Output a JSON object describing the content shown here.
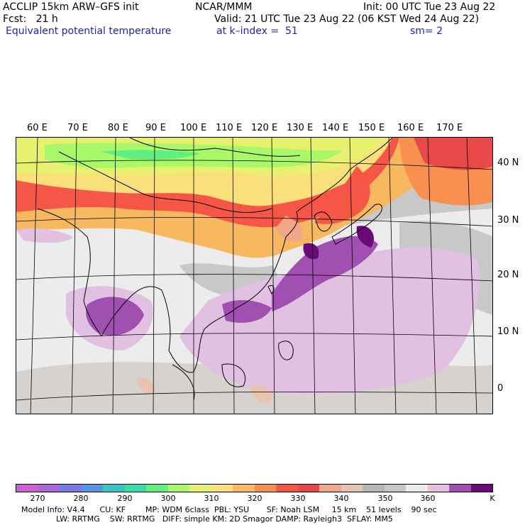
{
  "header": {
    "model": "ACCLIP 15km ARW–GFS init",
    "org": "NCAR/MMM",
    "init": "Init: 00 UTC Tue 23 Aug 22",
    "fcst": "Fcst:   21 h",
    "valid": "Valid: 21 UTC Tue 23 Aug 22 (06 KST Wed 24 Aug 22)",
    "field": "Equivalent potential temperature",
    "level": "at k–index =  51",
    "smooth": "sm= 2"
  },
  "map": {
    "lon_labels": [
      "60 E",
      "70 E",
      "80 E",
      "90 E",
      "100 E",
      "110 E",
      "120 E",
      "130 E",
      "140 E",
      "150 E",
      "160 E",
      "170 E"
    ],
    "lat_labels": [
      "40 N",
      "30 N",
      "20 N",
      "10 N",
      "0"
    ]
  },
  "colorbar": {
    "colors": [
      "#d05ed0",
      "#a968d8",
      "#7f78e4",
      "#5a92e4",
      "#36c8c0",
      "#34e0a8",
      "#5ef080",
      "#a8f868",
      "#e8f070",
      "#fae07a",
      "#f8b860",
      "#f89050",
      "#f65646",
      "#e84848",
      "#f0a888",
      "#e8c4b0",
      "#bcb6b2",
      "#c8c8c8",
      "#ececec",
      "#e2c0e2",
      "#a050b0",
      "#6a0a78"
    ],
    "labels": [
      "270",
      "280",
      "290",
      "300",
      "310",
      "320",
      "330",
      "340",
      "350",
      "360"
    ],
    "unit": "K"
  },
  "footer": {
    "line1": "Model Info: V4.4      CU: KF        MP: WDM 6class  PBL: YSU       SF: Noah LSM     15 km    51 levels    90 sec",
    "line2": "              LW: RRTMG    SW: RRTMG   DIFF: simple KM: 2D Smagor DAMP: Rayleigh3  SFLAY: MM5"
  }
}
